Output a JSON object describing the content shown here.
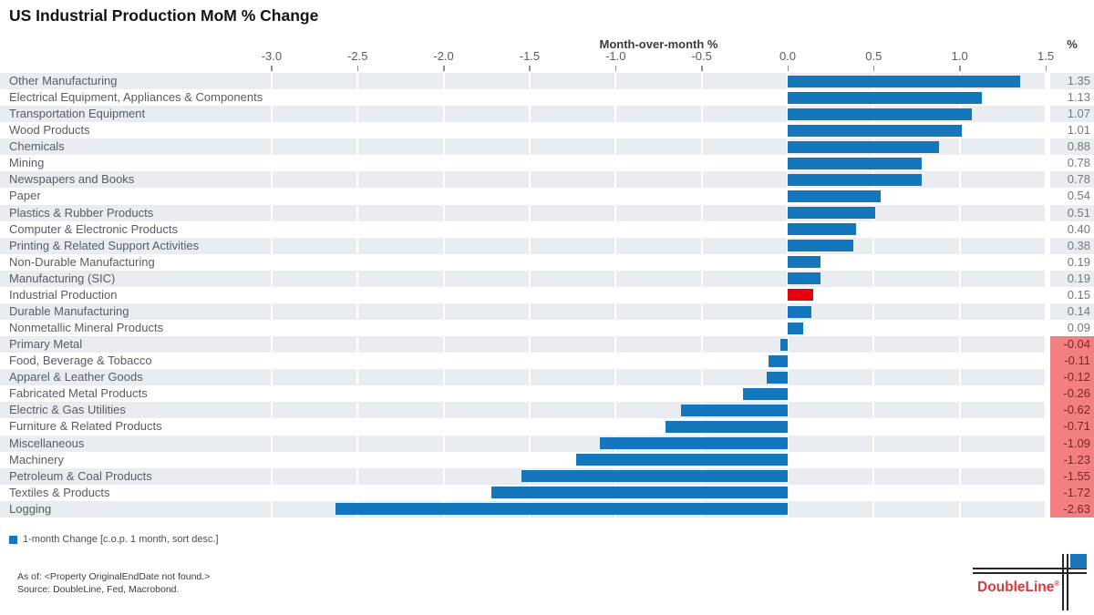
{
  "header": {
    "title": "US Industrial Production MoM % Change"
  },
  "axis": {
    "label": "Month-over-month %",
    "unit_label": "%",
    "tick_labels": [
      "-3.0",
      "-2.5",
      "-2.0",
      "-1.5",
      "-1.0",
      "-0.5",
      "0.0",
      "0.5",
      "1.0",
      "1.5"
    ]
  },
  "chart_data": {
    "type": "bar",
    "orientation": "horizontal",
    "title": "US Industrial Production MoM % Change",
    "xlabel": "Month-over-month %",
    "xlim": [
      -3.25,
      1.78
    ],
    "ticks": [
      -3.0,
      -2.5,
      -2.0,
      -1.5,
      -1.0,
      -0.5,
      0.0,
      0.5,
      1.0,
      1.5
    ],
    "grid": "vertical-white-on-stripes",
    "legend_position": "bottom-left",
    "categories": [
      "Other Manufacturing",
      "Electrical Equipment, Appliances & Components",
      "Transportation Equipment",
      "Wood Products",
      "Chemicals",
      "Mining",
      "Newspapers and Books",
      "Paper",
      "Plastics & Rubber Products",
      "Computer & Electronic Products",
      "Printing & Related Support Activities",
      "Non-Durable Manufacturing",
      "Manufacturing (SIC)",
      "Industrial Production",
      "Durable Manufacturing",
      "Nonmetallic Mineral Products",
      "Primary Metal",
      "Food, Beverage & Tobacco",
      "Apparel & Leather Goods",
      "Fabricated Metal Products",
      "Electric & Gas Utilities",
      "Furniture & Related Products",
      "Miscellaneous",
      "Machinery",
      "Petroleum & Coal Products",
      "Textiles & Products",
      "Logging"
    ],
    "values": [
      1.35,
      1.13,
      1.07,
      1.01,
      0.88,
      0.78,
      0.78,
      0.54,
      0.51,
      0.4,
      0.38,
      0.19,
      0.19,
      0.15,
      0.14,
      0.09,
      -0.04,
      -0.11,
      -0.12,
      -0.26,
      -0.62,
      -0.71,
      -1.09,
      -1.23,
      -1.55,
      -1.72,
      -2.63
    ],
    "highlight_category": "Industrial Production",
    "colors": {
      "bar": "#1477bc",
      "highlight_bar": "#e8000d",
      "stripe": "#e9edf1",
      "negative_value_bg": "#f28080",
      "negative_value_text": "#7d2427",
      "positive_value_text": "#75797e"
    }
  },
  "legend": {
    "label": "1-month Change [c.o.p. 1 month, sort desc.]",
    "swatch_color": "#1477bc"
  },
  "footer": {
    "as_of": "As of: <Property OriginalEndDate not found.>",
    "source": "Source: DoubleLine, Fed, Macrobond."
  },
  "logo": {
    "text": "DoubleLine",
    "registered": "®"
  }
}
